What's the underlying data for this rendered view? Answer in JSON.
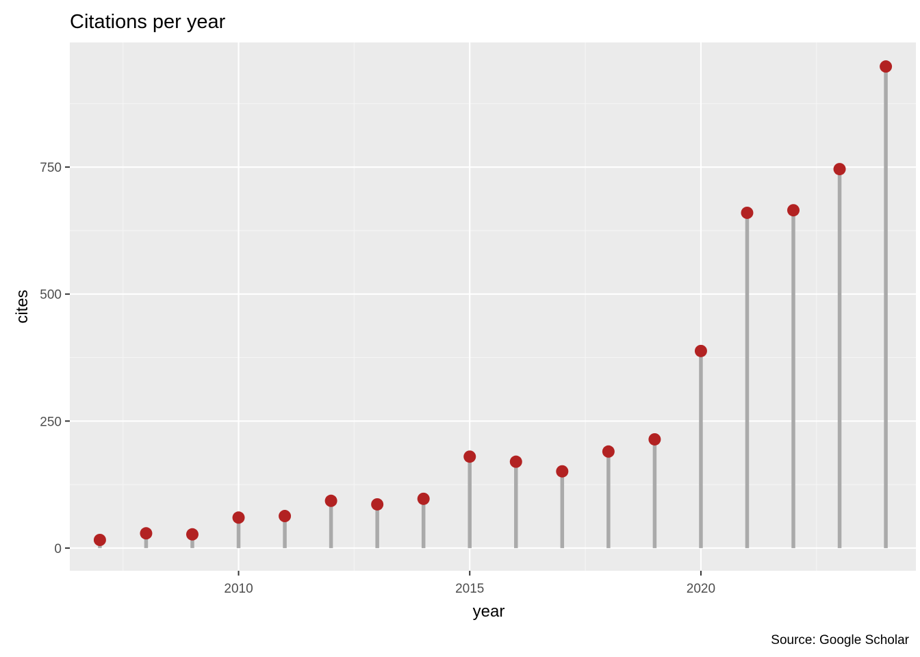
{
  "chart_data": {
    "type": "lollipop",
    "title": "Citations per year",
    "xlabel": "year",
    "ylabel": "cites",
    "caption": "Source: Google Scholar",
    "x": [
      2007,
      2008,
      2009,
      2010,
      2011,
      2012,
      2013,
      2014,
      2015,
      2016,
      2017,
      2018,
      2019,
      2020,
      2021,
      2022,
      2023,
      2024
    ],
    "values": [
      16,
      29,
      27,
      60,
      63,
      93,
      86,
      97,
      180,
      170,
      151,
      190,
      214,
      388,
      660,
      665,
      746,
      948
    ],
    "xlim": [
      2006.35,
      2024.65
    ],
    "ylim": [
      -44.7,
      995.4
    ],
    "x_ticks": [
      2010,
      2015,
      2020
    ],
    "x_tick_labels": [
      "2010",
      "2015",
      "2020"
    ],
    "y_ticks": [
      0,
      250,
      500,
      750
    ],
    "y_tick_labels": [
      "0",
      "250",
      "500",
      "750"
    ],
    "grid": true,
    "legend": "none",
    "colors": {
      "panel_background": "#EBEBEB",
      "grid_major": "#FFFFFF",
      "grid_minor": "#F5F5F5",
      "stem": "#AAAAAA",
      "point": "#B22222",
      "tick_text": "#4D4D4D",
      "tick_mark": "#333333"
    }
  }
}
